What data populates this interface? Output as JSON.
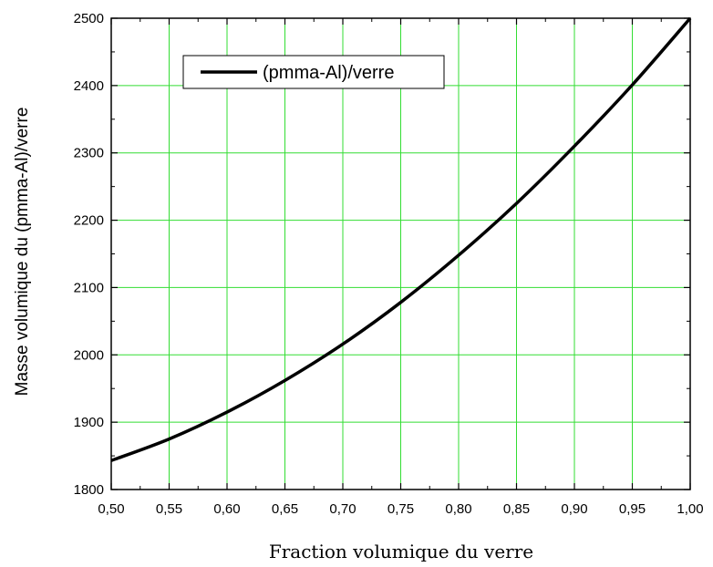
{
  "chart_data": {
    "type": "line",
    "xlabel": "Fraction volumique du verre",
    "ylabel": "Masse volumique du (pmma-Al)/verre",
    "xlim": [
      0.5,
      1.0
    ],
    "ylim": [
      1800,
      2500
    ],
    "x_ticks": [
      "0,50",
      "0,55",
      "0,60",
      "0,65",
      "0,70",
      "0,75",
      "0,80",
      "0,85",
      "0,90",
      "0,95",
      "1,00"
    ],
    "y_ticks": [
      "1800",
      "1900",
      "2000",
      "2100",
      "2200",
      "2300",
      "2400",
      "2500"
    ],
    "grid": true,
    "grid_color": "#33dd33",
    "legend_position": "top-left",
    "series": [
      {
        "name": "(pmma-Al)/verre",
        "color": "#000000",
        "x": [
          0.5,
          0.55,
          0.6,
          0.65,
          0.7,
          0.75,
          0.8,
          0.85,
          0.9,
          0.95,
          1.0
        ],
        "y": [
          1843,
          1875,
          1915,
          1962,
          2016,
          2078,
          2148,
          2225,
          2310,
          2401,
          2500
        ]
      }
    ]
  }
}
